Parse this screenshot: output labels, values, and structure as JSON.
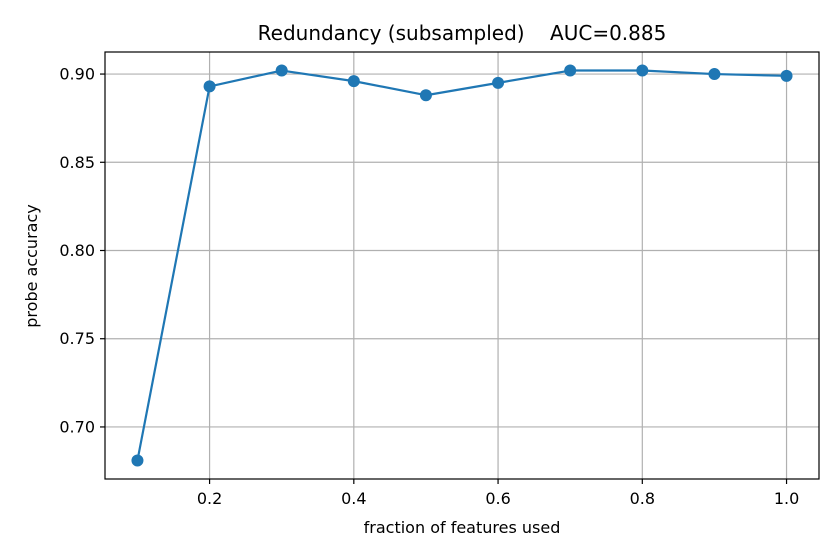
{
  "chart_data": {
    "type": "line",
    "title": "Redundancy (subsampled)    AUC=0.885",
    "xlabel": "fraction of features used",
    "ylabel": "probe accuracy",
    "x": [
      0.1,
      0.2,
      0.3,
      0.4,
      0.5,
      0.6,
      0.7,
      0.8,
      0.9,
      1.0
    ],
    "series": [
      {
        "values": [
          0.681,
          0.893,
          0.902,
          0.896,
          0.888,
          0.895,
          0.902,
          0.902,
          0.9,
          0.899
        ],
        "color": "#1f77b4"
      }
    ],
    "xlim": [
      0.055,
      1.045
    ],
    "ylim": [
      0.6705,
      0.9125
    ],
    "xticks": [
      0.2,
      0.4,
      0.6,
      0.8,
      1.0
    ],
    "xtick_labels": [
      "0.2",
      "0.4",
      "0.6",
      "0.8",
      "1.0"
    ],
    "yticks": [
      0.7,
      0.75,
      0.8,
      0.85,
      0.9
    ],
    "ytick_labels": [
      "0.70",
      "0.75",
      "0.80",
      "0.85",
      "0.90"
    ],
    "grid": true,
    "legend": false
  }
}
